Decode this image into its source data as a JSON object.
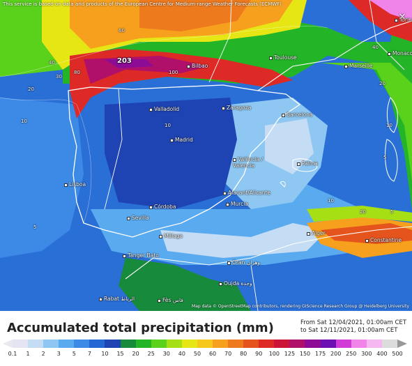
{
  "map": {
    "source_note": "This service is based on data and products of the European Centre for Medium-range Weather Forecasts (ECMWF)",
    "attribution": "Map data © OpenStreetMap contributors, rendering GIScience Research Group @ Heidelberg University",
    "max_value": "203",
    "cities": [
      {
        "name": "Torino"
      },
      {
        "name": "Toulouse"
      },
      {
        "name": "Monaco"
      },
      {
        "name": "Marseille"
      },
      {
        "name": "Bilbao"
      },
      {
        "name": "Valladolid"
      },
      {
        "name": "Zaragoza"
      },
      {
        "name": "Barcelona"
      },
      {
        "name": "Madrid"
      },
      {
        "name": "València / Valencia"
      },
      {
        "name": "Palma"
      },
      {
        "name": "Lisboa"
      },
      {
        "name": "Alacant/Alicante"
      },
      {
        "name": "Murcia"
      },
      {
        "name": "Córdoba"
      },
      {
        "name": "Sevilla"
      },
      {
        "name": "Málaga"
      },
      {
        "name": "Alger"
      },
      {
        "name": "Constantine"
      },
      {
        "name": "Tanger Bato"
      },
      {
        "name": "Oran وهران"
      },
      {
        "name": "Oujda وجدة"
      },
      {
        "name": "Rabat الرباط"
      },
      {
        "name": "Fès فاس"
      }
    ],
    "contour_labels": [
      {
        "value": "60"
      },
      {
        "value": "40"
      },
      {
        "value": "30"
      },
      {
        "value": "20"
      },
      {
        "value": "10"
      },
      {
        "value": "5"
      },
      {
        "value": "80"
      },
      {
        "value": "100"
      },
      {
        "value": "10"
      },
      {
        "value": "5"
      },
      {
        "value": "20"
      },
      {
        "value": "10"
      },
      {
        "value": "5"
      },
      {
        "value": "10"
      },
      {
        "value": "20"
      },
      {
        "value": "40"
      }
    ]
  },
  "legend": {
    "title": "Accumulated total precipitation (mm)",
    "period_from": "From Sat 12/04/2021, 01:00am CET",
    "period_to": "to Sat 12/11/2021, 01:00am CET",
    "ticks": [
      "0.1",
      "1",
      "2",
      "3",
      "5",
      "7",
      "10",
      "15",
      "20",
      "25",
      "30",
      "40",
      "50",
      "60",
      "70",
      "80",
      "90",
      "100",
      "125",
      "150",
      "175",
      "200",
      "250",
      "300",
      "400",
      "500"
    ],
    "colors": [
      "#e4e4f2",
      "#c4dcf4",
      "#8ec8f2",
      "#5aaaf0",
      "#3c8ae6",
      "#2466d4",
      "#1e44b4",
      "#178a3c",
      "#24b428",
      "#5ad21c",
      "#a6e014",
      "#e6e614",
      "#f6c81c",
      "#f6a01e",
      "#ee7a1e",
      "#e6541e",
      "#de2a26",
      "#cc1438",
      "#b0106a",
      "#8c0c96",
      "#6c10b4",
      "#d23cd6",
      "#f084e8",
      "#f6b8f0",
      "#dcdcdc"
    ]
  },
  "close_label": "×"
}
